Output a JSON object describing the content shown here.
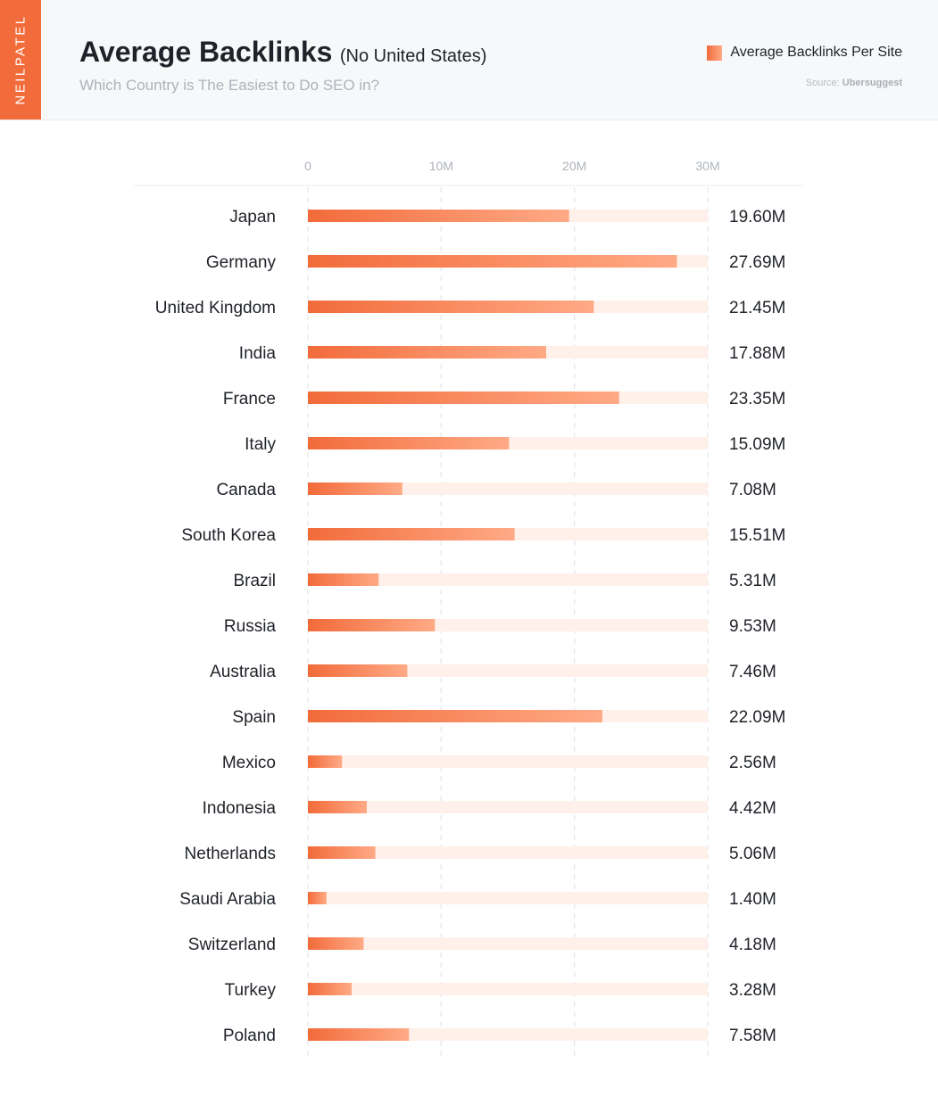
{
  "brand": "NEILPATEL",
  "header": {
    "title": "Average Backlinks",
    "title_note": "(No United States)",
    "subtitle": "Which Country is The Easiest to Do SEO in?",
    "legend_label": "Average Backlinks Per Site",
    "source_prefix": "Source:",
    "source_name": "Ubersuggest"
  },
  "colors": {
    "accent": "#f26b3a",
    "accent_light": "#ffaa86",
    "track": "#fff0ea",
    "grid": "#e3e5e8",
    "text": "#1f2228",
    "muted": "#aeb3bb"
  },
  "chart_data": {
    "type": "bar",
    "orientation": "horizontal",
    "title": "Average Backlinks",
    "subtitle": "Which Country is The Easiest to Do SEO in?",
    "xlim": [
      0,
      30
    ],
    "x_ticks": [
      0,
      10,
      20,
      30
    ],
    "x_tick_labels": [
      "0",
      "10M",
      "20M",
      "30M"
    ],
    "grid": true,
    "legend_position": "top-right",
    "categories": [
      "Japan",
      "Germany",
      "United Kingdom",
      "India",
      "France",
      "Italy",
      "Canada",
      "South Korea",
      "Brazil",
      "Russia",
      "Australia",
      "Spain",
      "Mexico",
      "Indonesia",
      "Netherlands",
      "Saudi Arabia",
      "Switzerland",
      "Turkey",
      "Poland"
    ],
    "series": [
      {
        "name": "Average Backlinks Per Site",
        "values": [
          19.6,
          27.69,
          21.45,
          17.88,
          23.35,
          15.09,
          7.08,
          15.51,
          5.31,
          9.53,
          7.46,
          22.09,
          2.56,
          4.42,
          5.06,
          1.4,
          4.18,
          3.28,
          7.58
        ],
        "labels": [
          "19.60M",
          "27.69M",
          "21.45M",
          "17.88M",
          "23.35M",
          "15.09M",
          "7.08M",
          "15.51M",
          "5.31M",
          "9.53M",
          "7.46M",
          "22.09M",
          "2.56M",
          "4.42M",
          "5.06M",
          "1.40M",
          "4.18M",
          "3.28M",
          "7.58M"
        ]
      }
    ]
  }
}
